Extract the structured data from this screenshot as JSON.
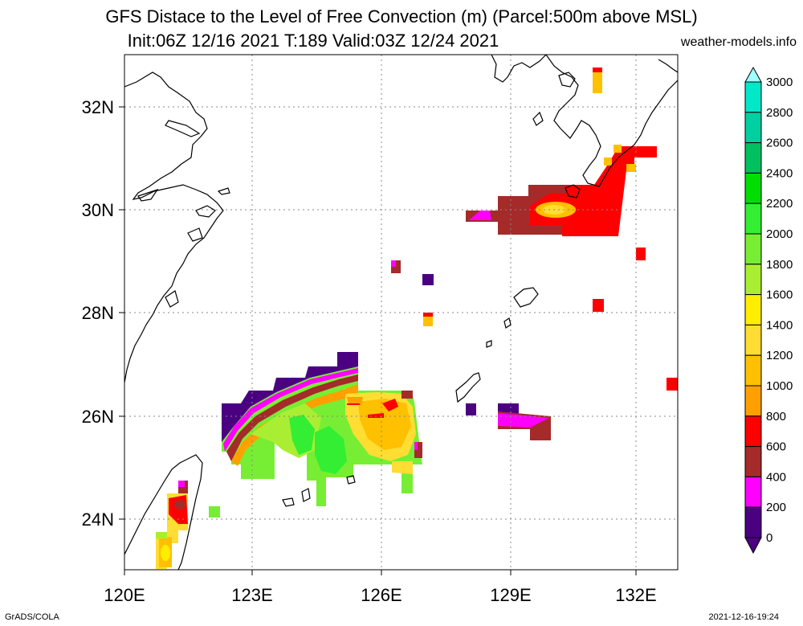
{
  "title_line1": "GFS Distace to the Level of Free Convection (m) (Parcel:500m above MSL)",
  "title_line2": "Init:06Z 12/16 2021 T:189 Valid:03Z 12/24 2021",
  "site": "weather-models.info",
  "footer_left": "GrADS/COLA",
  "footer_right": "2021-12-16-19:24",
  "map": {
    "lon_range": [
      120,
      133
    ],
    "lat_range": [
      23,
      33
    ],
    "lon_ticks": [
      "120E",
      "123E",
      "126E",
      "129E",
      "132E"
    ],
    "lat_ticks": [
      "32N",
      "30N",
      "28N",
      "26N",
      "24N"
    ]
  },
  "colorbar": {
    "labels": [
      "3000",
      "2800",
      "2600",
      "2400",
      "2200",
      "2000",
      "1800",
      "1600",
      "1400",
      "1200",
      "1000",
      "800",
      "600",
      "400",
      "200",
      "0"
    ],
    "colors": [
      "#e0ffff",
      "#00e8c8",
      "#00d0a0",
      "#00c060",
      "#00dd00",
      "#33ee33",
      "#77ee33",
      "#aaee33",
      "#ffee00",
      "#ffdd33",
      "#ffc000",
      "#ffa000",
      "#ff0000",
      "#a52a2a",
      "#ff00ff",
      "#4b0082"
    ]
  }
}
